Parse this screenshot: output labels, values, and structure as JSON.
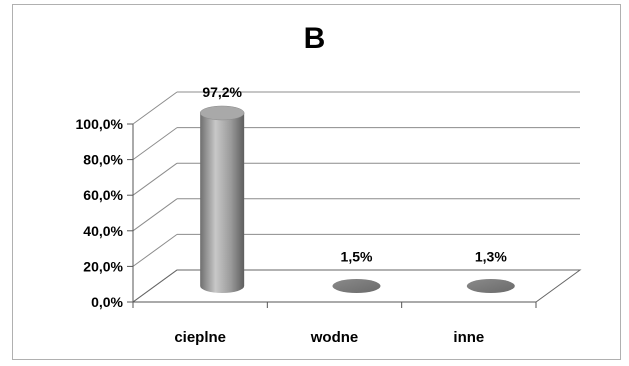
{
  "chart_data": {
    "type": "bar",
    "title": "B",
    "categories": [
      "cieplne",
      "wodne",
      "inne"
    ],
    "values": [
      97.2,
      1.5,
      1.3
    ],
    "data_labels": [
      "97,2%",
      "1,5%",
      "1,3%"
    ],
    "yticks": [
      "0,0%",
      "20,0%",
      "40,0%",
      "60,0%",
      "80,0%",
      "100,0%"
    ],
    "ylim": [
      0,
      100
    ],
    "grid": true,
    "style": "3d-cylinder",
    "bar_color": "#9a9a9a"
  }
}
